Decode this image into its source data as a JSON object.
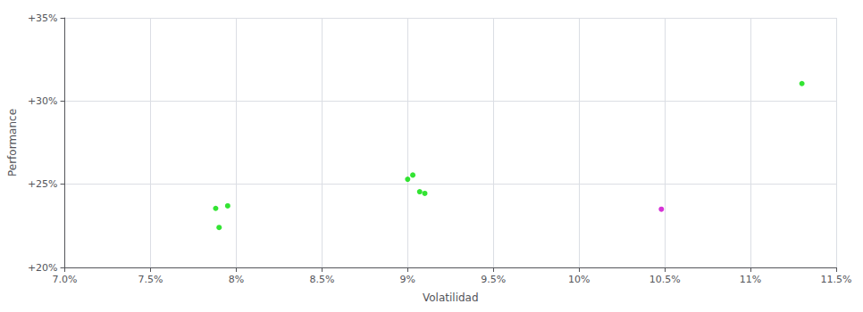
{
  "chart_data": {
    "type": "scatter",
    "xlabel": "Volatilidad",
    "ylabel": "Performance",
    "series": [
      {
        "color": "#00dd00",
        "x": [
          0.0788,
          0.0795,
          0.079,
          0.09,
          0.0903,
          0.0907,
          0.091,
          0.113
        ],
        "values": [
          0.2355,
          0.237,
          0.224,
          0.253,
          0.2555,
          0.2455,
          0.2445,
          0.3105
        ]
      },
      {
        "color": "#cc00cc",
        "x": [
          0.1048
        ],
        "values": [
          0.235
        ]
      }
    ],
    "xlim": [
      0.07,
      0.115
    ],
    "xticks": [
      {
        "value": 0.07,
        "label": "7.0%"
      },
      {
        "value": 0.075,
        "label": "7.5%"
      },
      {
        "value": 0.08,
        "label": "8%"
      },
      {
        "value": 0.085,
        "label": "8.5%"
      },
      {
        "value": 0.09,
        "label": "9%"
      },
      {
        "value": 0.095,
        "label": "9.5%"
      },
      {
        "value": 0.1,
        "label": "10%"
      },
      {
        "value": 0.105,
        "label": "10.5%"
      },
      {
        "value": 0.11,
        "label": "11%"
      },
      {
        "value": 0.115,
        "label": "11.5%"
      }
    ],
    "ylim": [
      0.2,
      0.35
    ],
    "yticks": [
      {
        "value": 0.2,
        "label": "+20%"
      },
      {
        "value": 0.25,
        "label": "+25%"
      },
      {
        "value": 0.3,
        "label": "+30%"
      },
      {
        "value": 0.35,
        "label": "+35%"
      }
    ],
    "grid": true
  }
}
